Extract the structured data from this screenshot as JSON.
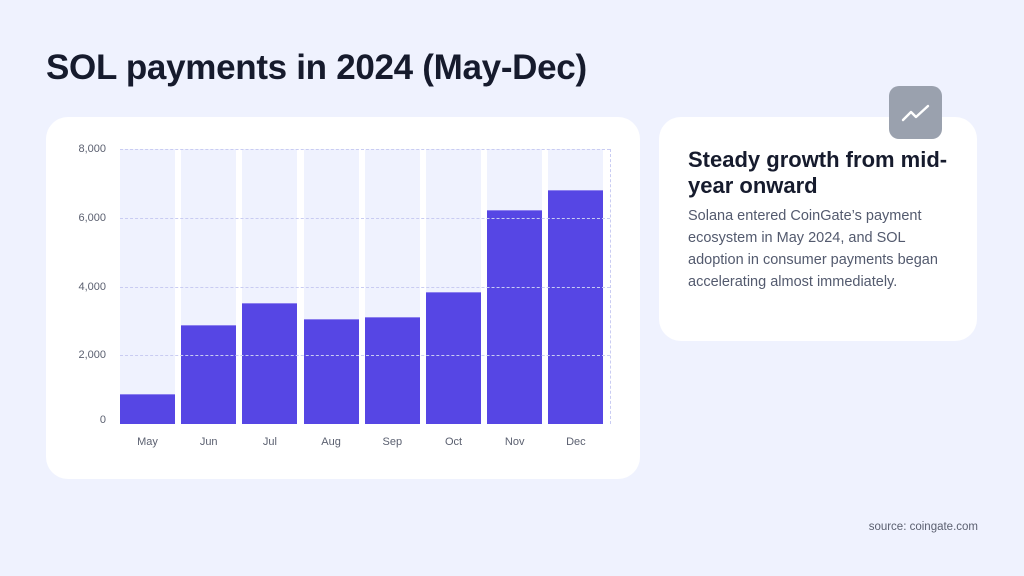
{
  "page": {
    "title": "SOL payments in 2024 (May-Dec)",
    "source": "source: coingate.com"
  },
  "info_card": {
    "icon": "trend-up-icon",
    "heading": "Steady growth from mid-year onward",
    "body": "Solana entered CoinGate’s payment ecosystem in May 2024, and SOL adoption in consumer payments began accelerating almost immediately."
  },
  "colors": {
    "background": "#eff2fe",
    "bar": "#5646e4",
    "bar_track": "#eff2fe",
    "badge": "#9aa1ae",
    "title": "#161b2d",
    "muted_text": "#5b6070"
  },
  "chart_data": {
    "type": "bar",
    "title": "SOL payments in 2024 (May-Dec)",
    "xlabel": "",
    "ylabel": "",
    "categories": [
      "May",
      "Jun",
      "Jul",
      "Aug",
      "Sep",
      "Oct",
      "Nov",
      "Dec"
    ],
    "values": [
      860,
      2890,
      3510,
      3060,
      3120,
      3830,
      6220,
      6820
    ],
    "ylim": [
      0,
      8000
    ],
    "yticks": [
      0,
      2000,
      4000,
      6000,
      8000
    ],
    "ytick_labels": [
      "0",
      "2,000",
      "4,000",
      "6,000",
      "8,000"
    ],
    "grid": true,
    "legend": null
  }
}
